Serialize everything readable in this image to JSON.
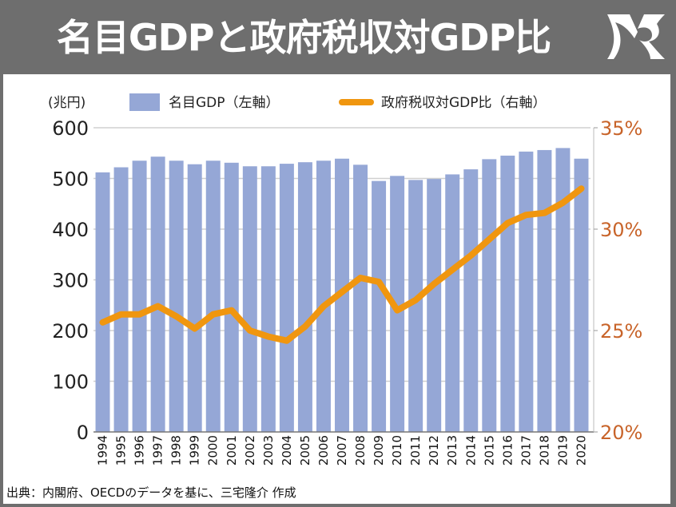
{
  "header": {
    "title": "名目GDPと政府税収対GDP比",
    "logo": "MR-monogram-logo"
  },
  "footer": {
    "source": "出典：内閣府、OECDのデータを基に、三宅隆介 作成"
  },
  "colors": {
    "bar": "#95a7d6",
    "line": "#f0960f",
    "right_axis_text": "#c8642a",
    "grid": "#d0d0d0",
    "header_bg": "#6e6e6e"
  },
  "chart_data": {
    "type": "bar+line",
    "title": "名目GDPと政府税収対GDP比",
    "unit_label": "(兆円)",
    "legend": [
      {
        "name": "名目GDP（左軸）",
        "kind": "bar"
      },
      {
        "name": "政府税収対GDP比（右軸）",
        "kind": "line"
      }
    ],
    "legend_position": "top",
    "grid": true,
    "categories": [
      "1994",
      "1995",
      "1996",
      "1997",
      "1998",
      "1999",
      "2000",
      "2001",
      "2002",
      "2003",
      "2004",
      "2005",
      "2006",
      "2007",
      "2008",
      "2009",
      "2010",
      "2011",
      "2012",
      "2013",
      "2014",
      "2015",
      "2016",
      "2017",
      "2018",
      "2019",
      "2020"
    ],
    "left_axis": {
      "label": "兆円",
      "ylim": [
        0,
        600
      ],
      "ticks": [
        0,
        100,
        200,
        300,
        400,
        500,
        600
      ],
      "tick_labels": [
        "0",
        "100",
        "200",
        "300",
        "400",
        "500",
        "600"
      ]
    },
    "right_axis": {
      "label": "%",
      "ylim": [
        20,
        35
      ],
      "ticks": [
        20,
        25,
        30,
        35
      ],
      "tick_labels": [
        "20%",
        "25%",
        "30%",
        "35%"
      ]
    },
    "series": [
      {
        "name": "名目GDP（左軸）",
        "type": "bar",
        "axis": "left",
        "values": [
          512,
          522,
          535,
          543,
          535,
          528,
          535,
          531,
          524,
          524,
          529,
          532,
          535,
          539,
          527,
          495,
          505,
          497,
          499,
          508,
          518,
          538,
          545,
          553,
          556,
          560,
          539
        ]
      },
      {
        "name": "政府税収対GDP比（右軸）",
        "type": "line",
        "axis": "right",
        "values": [
          25.4,
          25.8,
          25.8,
          26.2,
          25.7,
          25.1,
          25.8,
          26.0,
          25.0,
          24.7,
          24.5,
          25.2,
          26.2,
          26.9,
          27.6,
          27.4,
          26.0,
          26.5,
          27.3,
          28.0,
          28.7,
          29.5,
          30.3,
          30.7,
          30.8,
          31.3,
          32.0
        ]
      }
    ]
  }
}
